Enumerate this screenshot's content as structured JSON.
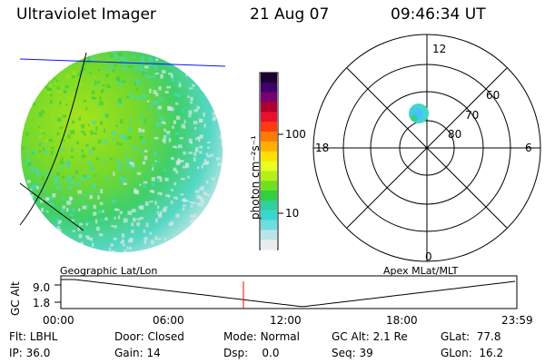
{
  "header": {
    "instrument": "Ultraviolet Imager",
    "date": "21 Aug 07",
    "time": "09:46:34 UT"
  },
  "colorbar": {
    "unit_label": "photon cm⁻²s⁻¹",
    "ticks": [
      "100",
      "10"
    ]
  },
  "polar_plot": {
    "mlt_labels": {
      "top": "12",
      "left": "18",
      "right": "6",
      "bottom": "0"
    },
    "lat_labels": [
      "60",
      "70",
      "80"
    ]
  },
  "timeline": {
    "y_axis_title": "GC Alt",
    "y_ticks": [
      "9.0",
      "1.8"
    ],
    "left_caption": "Geographic Lat/Lon",
    "right_caption": "Apex MLat/MLT",
    "x_ticks": [
      "00:00",
      "06:00",
      "12:00",
      "18:00",
      "23:59"
    ]
  },
  "status": {
    "row1": [
      {
        "label": "Flt:",
        "value": "LBHL"
      },
      {
        "label": "Door:",
        "value": "Closed"
      },
      {
        "label": "Mode:",
        "value": "Normal"
      },
      {
        "label": "GC Alt:",
        "value": "2.1 Re"
      },
      {
        "label": "GLat:",
        "value": "77.8"
      }
    ],
    "row2": [
      {
        "label": "IP:",
        "value": "36.0"
      },
      {
        "label": "Gain:",
        "value": "14"
      },
      {
        "label": "Dsp:",
        "value": "0.0"
      },
      {
        "label": "Seq:",
        "value": "39"
      },
      {
        "label": "GLon:",
        "value": "16.2"
      }
    ]
  },
  "colors": {
    "bright_green": "#9ee21a",
    "green": "#3ccf3c",
    "cyan": "#41d9c6",
    "pale": "#d4e8ea",
    "marker_red": "#ff0000",
    "grid_blue": "#1010ff"
  }
}
